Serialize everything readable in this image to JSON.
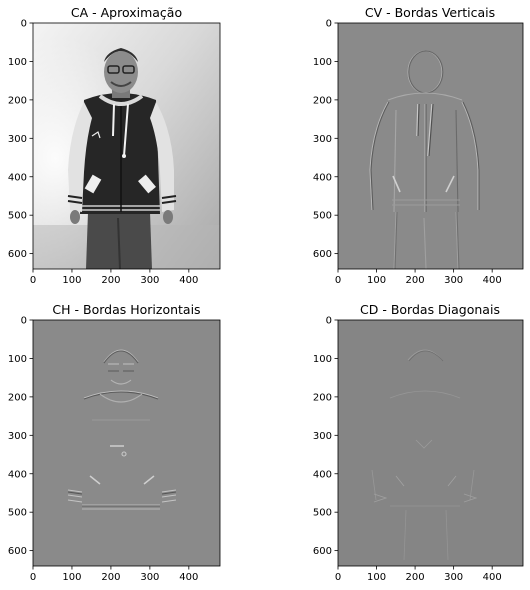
{
  "figure": {
    "panels": [
      {
        "id": "ca",
        "title": "CA - Aproximação",
        "kind": "photo",
        "x_ticks": [
          "0",
          "100",
          "200",
          "300",
          "400"
        ],
        "y_ticks": [
          "0",
          "100",
          "200",
          "300",
          "400",
          "500",
          "600"
        ],
        "x_range": [
          0,
          480
        ],
        "y_range": [
          0,
          640
        ]
      },
      {
        "id": "cv",
        "title": "CV - Bordas Verticais",
        "kind": "edge",
        "x_ticks": [
          "0",
          "100",
          "200",
          "300",
          "400"
        ],
        "y_ticks": [
          "0",
          "100",
          "200",
          "300",
          "400",
          "500",
          "600"
        ],
        "x_range": [
          0,
          480
        ],
        "y_range": [
          0,
          640
        ]
      },
      {
        "id": "ch",
        "title": "CH - Bordas Horizontais",
        "kind": "edge",
        "x_ticks": [
          "0",
          "100",
          "200",
          "300",
          "400"
        ],
        "y_ticks": [
          "0",
          "100",
          "200",
          "300",
          "400",
          "500",
          "600"
        ],
        "x_range": [
          0,
          480
        ],
        "y_range": [
          0,
          640
        ]
      },
      {
        "id": "cd",
        "title": "CD - Bordas Diagonais",
        "kind": "edge",
        "x_ticks": [
          "0",
          "100",
          "200",
          "300",
          "400"
        ],
        "y_ticks": [
          "0",
          "100",
          "200",
          "300",
          "400",
          "500",
          "600"
        ],
        "x_range": [
          0,
          480
        ],
        "y_range": [
          0,
          640
        ]
      }
    ]
  },
  "colors": {
    "edge_background": "#8a8a8a",
    "diag_background": "#858585",
    "photo_wall_light": "#f2f2f2",
    "photo_wall_dark": "#9a9a9a",
    "jacket": "#2a2a2a",
    "sleeve": "#e6e6e6"
  }
}
